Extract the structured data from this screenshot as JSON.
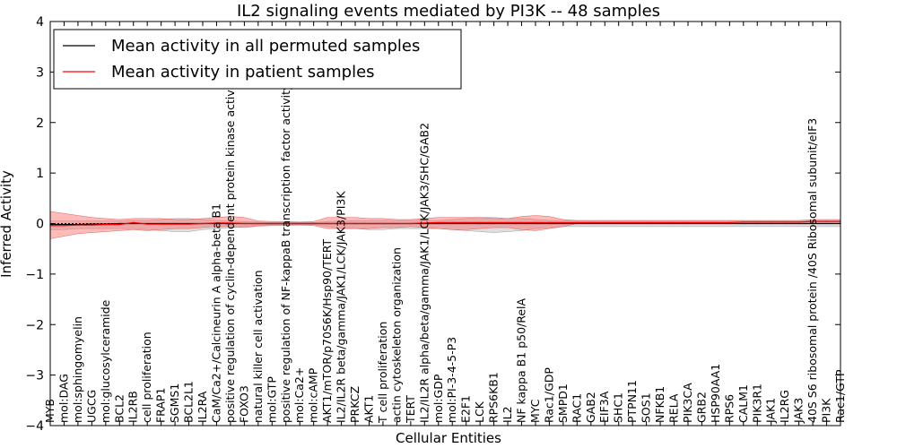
{
  "chart_data": {
    "type": "line",
    "title": "IL2 signaling events mediated by PI3K -- 48 samples",
    "xlabel": "Cellular Entities",
    "ylabel": "Inferred Activity",
    "ylim": [
      -4,
      4
    ],
    "yticks": [
      -4,
      -3,
      -2,
      -1,
      0,
      1,
      2,
      3,
      4
    ],
    "ytick_labels": [
      "−4",
      "−3",
      "−2",
      "−1",
      "0",
      "1",
      "2",
      "3",
      "4"
    ],
    "legend_position": "top-left",
    "categories": [
      "MYB",
      "mol:DAG",
      "mol:sphingomyelin",
      "UGCG",
      "mol:glucosylceramide",
      "BCL2",
      "IL2RB",
      "cell proliferation",
      "FRAP1",
      "SGMS1",
      "BCL2L1",
      "IL2RA",
      "CaM/Ca2+/Calcineurin A alpha-beta B1",
      "positive regulation of cyclin-dependent protein kinase activity",
      "FOXO3",
      "natural killer cell activation",
      "mol:GTP",
      "positive regulation of NF-kappaB transcription factor activity",
      "mol:Ca2+",
      "mol:cAMP",
      "AKT1/mTOR/p70S6K/Hsp90/TERT",
      "IL2/IL2R beta/gamma/JAK1/LCK/JAK3/PI3K",
      "PRKCZ",
      "AKT1",
      "T cell proliferation",
      "actin cytoskeleton organization",
      "TERT",
      "IL2/IL2R alpha/beta/gamma/JAK1/LCK/JAK3/SHC/GAB2",
      "mol:GDP",
      "mol:PI-3-4-5-P3",
      "E2F1",
      "LCK",
      "RPS6KB1",
      "IL2",
      "NF kappa B1 p50/RelA",
      "MYC",
      "Rac1/GDP",
      "SMPD1",
      "RAC1",
      "GAB2",
      "EIF3A",
      "SHC1",
      "PTPN11",
      "SOS1",
      "NFKB1",
      "RELA",
      "PIK3CA",
      "GRB2",
      "HSP90AA1",
      "RPS6",
      "CALM1",
      "PIK3R1",
      "JAK1",
      "IL2RG",
      "JAK3",
      "40S S6 ribosomal protein /40S Ribosomal subunit/eIF3",
      "PI3K",
      "Rac1/GTP"
    ],
    "series": [
      {
        "name": "Mean activity in all permuted samples",
        "color": "#000000",
        "values": [
          -0.02,
          -0.02,
          -0.02,
          -0.01,
          -0.01,
          0.0,
          0.0,
          0.0,
          0.0,
          0.0,
          0.0,
          0.0,
          0.0,
          0.0,
          0.0,
          0.0,
          0.0,
          0.0,
          0.0,
          0.0,
          0.0,
          0.0,
          0.0,
          0.0,
          0.0,
          0.0,
          0.0,
          0.0,
          0.0,
          0.0,
          0.0,
          0.0,
          0.0,
          0.0,
          0.0,
          0.0,
          0.0,
          0.0,
          0.0,
          0.0,
          0.0,
          0.0,
          0.0,
          0.0,
          0.0,
          0.0,
          0.0,
          0.0,
          0.0,
          0.0,
          0.0,
          0.0,
          0.0,
          0.0,
          0.0,
          0.0,
          0.0,
          0.0
        ],
        "band_upper": [
          0.05,
          0.05,
          0.05,
          0.05,
          0.05,
          0.05,
          0.06,
          0.06,
          0.08,
          0.1,
          0.1,
          0.08,
          0.06,
          0.05,
          0.04,
          0.03,
          0.02,
          0.02,
          0.02,
          0.02,
          0.04,
          0.05,
          0.06,
          0.06,
          0.06,
          0.06,
          0.06,
          0.06,
          0.06,
          0.08,
          0.1,
          0.12,
          0.12,
          0.1,
          0.1,
          0.08,
          0.06,
          0.06,
          0.06,
          0.06,
          0.06,
          0.06,
          0.06,
          0.06,
          0.06,
          0.06,
          0.06,
          0.06,
          0.06,
          0.06,
          0.06,
          0.06,
          0.06,
          0.06,
          0.06,
          0.06,
          0.06,
          0.06
        ],
        "band_lower": [
          -0.12,
          -0.12,
          -0.1,
          -0.1,
          -0.1,
          -0.1,
          -0.1,
          -0.12,
          -0.14,
          -0.16,
          -0.16,
          -0.12,
          -0.1,
          -0.08,
          -0.06,
          -0.04,
          -0.02,
          -0.02,
          -0.02,
          -0.02,
          -0.06,
          -0.1,
          -0.1,
          -0.12,
          -0.12,
          -0.1,
          -0.1,
          -0.1,
          -0.1,
          -0.12,
          -0.14,
          -0.16,
          -0.18,
          -0.16,
          -0.14,
          -0.1,
          -0.08,
          -0.06,
          -0.06,
          -0.06,
          -0.06,
          -0.06,
          -0.06,
          -0.06,
          -0.06,
          -0.06,
          -0.06,
          -0.06,
          -0.06,
          -0.06,
          -0.06,
          -0.06,
          -0.06,
          -0.06,
          -0.06,
          -0.06,
          -0.06,
          -0.06
        ]
      },
      {
        "name": "Mean activity in patient samples",
        "color": "#ff0000",
        "values": [
          -0.04,
          -0.04,
          -0.03,
          -0.03,
          -0.02,
          -0.02,
          0.02,
          -0.01,
          -0.01,
          -0.01,
          -0.01,
          0.0,
          0.01,
          0.01,
          0.0,
          0.0,
          0.0,
          0.0,
          0.0,
          0.0,
          0.0,
          0.0,
          0.0,
          0.0,
          0.0,
          0.0,
          0.0,
          0.01,
          0.02,
          0.02,
          0.02,
          0.02,
          0.02,
          0.02,
          0.02,
          0.02,
          0.02,
          0.02,
          0.02,
          0.02,
          0.02,
          0.02,
          0.02,
          0.02,
          0.02,
          0.02,
          0.02,
          0.02,
          0.02,
          0.02,
          0.03,
          0.03,
          0.03,
          0.03,
          0.03,
          0.04,
          0.04,
          0.04
        ],
        "band_upper": [
          0.24,
          0.2,
          0.16,
          0.12,
          0.1,
          0.08,
          0.1,
          0.1,
          0.1,
          0.08,
          0.08,
          0.1,
          0.12,
          0.14,
          0.12,
          0.05,
          0.04,
          0.04,
          0.03,
          0.04,
          0.12,
          0.12,
          0.12,
          0.1,
          0.1,
          0.08,
          0.08,
          0.1,
          0.12,
          0.12,
          0.12,
          0.12,
          0.1,
          0.1,
          0.14,
          0.16,
          0.14,
          0.08,
          0.06,
          0.06,
          0.06,
          0.06,
          0.06,
          0.06,
          0.06,
          0.06,
          0.06,
          0.06,
          0.06,
          0.06,
          0.06,
          0.06,
          0.06,
          0.06,
          0.06,
          0.08,
          0.08,
          0.08
        ],
        "band_lower": [
          -0.3,
          -0.25,
          -0.2,
          -0.18,
          -0.16,
          -0.14,
          -0.12,
          -0.14,
          -0.12,
          -0.1,
          -0.1,
          -0.08,
          -0.06,
          -0.06,
          -0.08,
          -0.05,
          -0.04,
          -0.04,
          -0.03,
          -0.04,
          -0.1,
          -0.1,
          -0.1,
          -0.1,
          -0.08,
          -0.08,
          -0.06,
          -0.08,
          -0.1,
          -0.12,
          -0.12,
          -0.1,
          -0.08,
          -0.08,
          -0.12,
          -0.14,
          -0.1,
          -0.06,
          0.0,
          0.0,
          0.0,
          0.0,
          0.0,
          0.0,
          0.0,
          0.0,
          0.0,
          0.0,
          0.0,
          0.0,
          0.0,
          0.0,
          0.0,
          0.0,
          0.0,
          0.0,
          0.0,
          0.0
        ]
      }
    ],
    "reference_line": 0
  }
}
